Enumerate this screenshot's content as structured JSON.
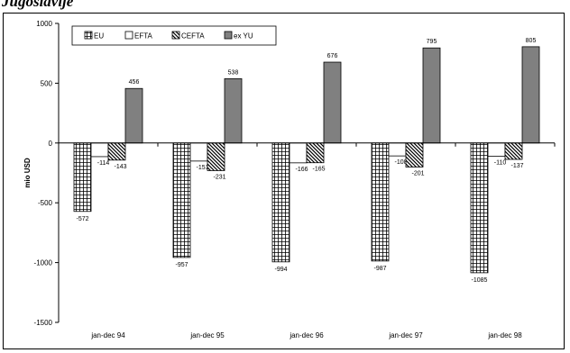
{
  "page": {
    "heading": "Jugoslavije"
  },
  "chart_data": {
    "type": "bar",
    "title": "",
    "xlabel": "",
    "ylabel": "mio USD",
    "ylim": [
      -1500,
      1000
    ],
    "yticks": [
      1000,
      500,
      0,
      -500,
      -1000,
      -1500
    ],
    "grid": false,
    "legend_position": "top-left",
    "categories": [
      "jan-dec 94",
      "jan-dec 95",
      "jan-dec 96",
      "jan-dec 97",
      "jan-dec 98"
    ],
    "series": [
      {
        "name": "EU",
        "pattern": "grid",
        "values": [
          -572,
          -957,
          -994,
          -987,
          -1085
        ]
      },
      {
        "name": "EFTA",
        "pattern": "white",
        "values": [
          -114,
          -151,
          -166,
          -108,
          -110
        ]
      },
      {
        "name": "CEFTA",
        "pattern": "diagonal",
        "values": [
          -143,
          -231,
          -165,
          -201,
          -137
        ]
      },
      {
        "name": "ex YU",
        "pattern": "gray",
        "color": "#808080",
        "values": [
          456,
          538,
          676,
          795,
          805
        ]
      }
    ]
  }
}
